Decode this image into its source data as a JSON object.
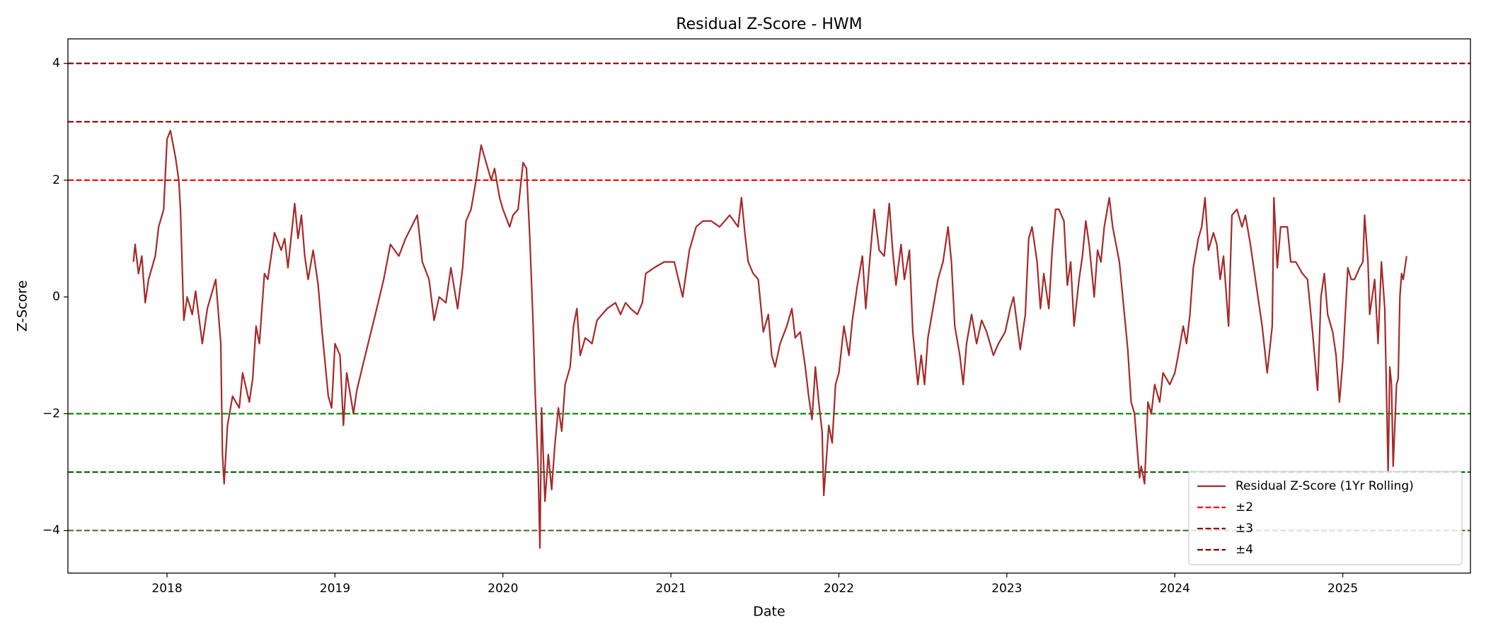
{
  "chart_data": {
    "type": "line",
    "title": "Residual Z-Score - HWM",
    "x_label": "Date",
    "y_label": "Z-Score",
    "xlim": [
      2017.41,
      2025.76
    ],
    "xticks": [
      2018,
      2019,
      2020,
      2021,
      2022,
      2023,
      2024,
      2025
    ],
    "ylim": [
      -4.73,
      4.42
    ],
    "yticks": [
      {
        "value": -4,
        "label": "−4"
      },
      {
        "value": -2,
        "label": "−2"
      },
      0,
      2,
      4
    ],
    "legend_position": "lower right",
    "series": [
      {
        "name": "Residual Z-Score (1Yr Rolling)",
        "color": "#a52a2a",
        "x": [
          2017.8,
          2017.81,
          2017.83,
          2017.85,
          2017.87,
          2017.89,
          2017.93,
          2017.95,
          2017.98,
          2018.0,
          2018.02,
          2018.05,
          2018.07,
          2018.08,
          2018.1,
          2018.12,
          2018.15,
          2018.17,
          2018.21,
          2018.24,
          2018.29,
          2018.32,
          2018.33,
          2018.34,
          2018.36,
          2018.39,
          2018.43,
          2018.45,
          2018.49,
          2018.51,
          2018.53,
          2018.55,
          2018.58,
          2018.6,
          2018.64,
          2018.68,
          2018.7,
          2018.72,
          2018.76,
          2018.78,
          2018.8,
          2018.82,
          2018.84,
          2018.87,
          2018.9,
          2018.92,
          2018.96,
          2018.98,
          2019.0,
          2019.03,
          2019.05,
          2019.07,
          2019.11,
          2019.13,
          2019.18,
          2019.24,
          2019.29,
          2019.33,
          2019.38,
          2019.42,
          2019.49,
          2019.52,
          2019.56,
          2019.59,
          2019.62,
          2019.66,
          2019.69,
          2019.73,
          2019.76,
          2019.78,
          2019.81,
          2019.84,
          2019.87,
          2019.9,
          2019.93,
          2019.95,
          2019.98,
          2020.0,
          2020.04,
          2020.06,
          2020.09,
          2020.12,
          2020.14,
          2020.16,
          2020.18,
          2020.19,
          2020.21,
          2020.22,
          2020.23,
          2020.25,
          2020.27,
          2020.29,
          2020.31,
          2020.33,
          2020.35,
          2020.37,
          2020.4,
          2020.42,
          2020.44,
          2020.46,
          2020.49,
          2020.53,
          2020.56,
          2020.62,
          2020.67,
          2020.7,
          2020.73,
          2020.76,
          2020.8,
          2020.83,
          2020.85,
          2020.9,
          2020.96,
          2021.02,
          2021.07,
          2021.11,
          2021.15,
          2021.19,
          2021.24,
          2021.29,
          2021.35,
          2021.4,
          2021.42,
          2021.44,
          2021.46,
          2021.49,
          2021.52,
          2021.55,
          2021.58,
          2021.6,
          2021.62,
          2021.65,
          2021.69,
          2021.72,
          2021.74,
          2021.77,
          2021.8,
          2021.82,
          2021.84,
          2021.86,
          2021.88,
          2021.9,
          2021.91,
          2021.94,
          2021.96,
          2021.98,
          2022.0,
          2022.03,
          2022.06,
          2022.08,
          2022.11,
          2022.14,
          2022.16,
          2022.18,
          2022.21,
          2022.24,
          2022.27,
          2022.3,
          2022.32,
          2022.34,
          2022.37,
          2022.39,
          2022.42,
          2022.44,
          2022.47,
          2022.49,
          2022.51,
          2022.53,
          2022.56,
          2022.59,
          2022.62,
          2022.65,
          2022.67,
          2022.69,
          2022.72,
          2022.74,
          2022.76,
          2022.79,
          2022.82,
          2022.85,
          2022.88,
          2022.92,
          2022.95,
          2022.99,
          2023.02,
          2023.04,
          2023.08,
          2023.11,
          2023.13,
          2023.15,
          2023.18,
          2023.2,
          2023.22,
          2023.25,
          2023.27,
          2023.29,
          2023.31,
          2023.34,
          2023.36,
          2023.38,
          2023.4,
          2023.43,
          2023.45,
          2023.47,
          2023.49,
          2023.52,
          2023.54,
          2023.56,
          2023.58,
          2023.61,
          2023.63,
          2023.65,
          2023.67,
          2023.7,
          2023.72,
          2023.74,
          2023.76,
          2023.79,
          2023.8,
          2023.82,
          2023.84,
          2023.86,
          2023.88,
          2023.91,
          2023.93,
          2023.97,
          2024.0,
          2024.02,
          2024.05,
          2024.07,
          2024.09,
          2024.11,
          2024.14,
          2024.16,
          2024.18,
          2024.2,
          2024.23,
          2024.25,
          2024.27,
          2024.29,
          2024.32,
          2024.34,
          2024.37,
          2024.4,
          2024.42,
          2024.45,
          2024.49,
          2024.52,
          2024.55,
          2024.58,
          2024.59,
          2024.61,
          2024.63,
          2024.67,
          2024.69,
          2024.72,
          2024.76,
          2024.79,
          2024.82,
          2024.85,
          2024.87,
          2024.89,
          2024.91,
          2024.94,
          2024.96,
          2024.98,
          2025.0,
          2025.03,
          2025.05,
          2025.07,
          2025.1,
          2025.12,
          2025.13,
          2025.15,
          2025.16,
          2025.19,
          2025.21,
          2025.23,
          2025.25,
          2025.27,
          2025.28,
          2025.29,
          2025.3,
          2025.32,
          2025.33,
          2025.34,
          2025.35,
          2025.36,
          2025.37,
          2025.38
        ],
        "values": [
          0.6,
          0.9,
          0.4,
          0.7,
          -0.1,
          0.3,
          0.7,
          1.2,
          1.5,
          2.7,
          2.85,
          2.4,
          2.0,
          1.5,
          -0.4,
          0.0,
          -0.3,
          0.1,
          -0.8,
          -0.2,
          0.3,
          -0.8,
          -2.7,
          -3.2,
          -2.2,
          -1.7,
          -1.9,
          -1.3,
          -1.8,
          -1.4,
          -0.5,
          -0.8,
          0.4,
          0.3,
          1.1,
          0.8,
          1.0,
          0.5,
          1.6,
          1.0,
          1.4,
          0.7,
          0.3,
          0.8,
          0.2,
          -0.5,
          -1.7,
          -1.9,
          -0.8,
          -1.0,
          -2.2,
          -1.3,
          -2.0,
          -1.6,
          -1.0,
          -0.3,
          0.3,
          0.9,
          0.7,
          1.0,
          1.4,
          0.6,
          0.3,
          -0.4,
          0.0,
          -0.1,
          0.5,
          -0.2,
          0.5,
          1.3,
          1.5,
          2.0,
          2.6,
          2.3,
          2.0,
          2.2,
          1.7,
          1.5,
          1.2,
          1.4,
          1.5,
          2.3,
          2.2,
          1.0,
          -0.5,
          -1.5,
          -3.0,
          -4.3,
          -1.9,
          -3.5,
          -2.7,
          -3.3,
          -2.5,
          -1.9,
          -2.3,
          -1.5,
          -1.2,
          -0.5,
          -0.2,
          -1.0,
          -0.7,
          -0.8,
          -0.4,
          -0.2,
          -0.1,
          -0.3,
          -0.1,
          -0.2,
          -0.3,
          -0.1,
          0.4,
          0.5,
          0.6,
          0.6,
          0.0,
          0.8,
          1.2,
          1.3,
          1.3,
          1.2,
          1.4,
          1.2,
          1.7,
          1.1,
          0.6,
          0.4,
          0.3,
          -0.6,
          -0.3,
          -1.0,
          -1.2,
          -0.8,
          -0.5,
          -0.2,
          -0.7,
          -0.6,
          -1.2,
          -1.7,
          -2.1,
          -1.2,
          -1.8,
          -2.3,
          -3.4,
          -2.2,
          -2.5,
          -1.5,
          -1.3,
          -0.5,
          -1.0,
          -0.4,
          0.2,
          0.7,
          -0.2,
          0.5,
          1.5,
          0.8,
          0.7,
          1.6,
          0.8,
          0.2,
          0.9,
          0.3,
          0.8,
          -0.6,
          -1.5,
          -1.0,
          -1.5,
          -0.7,
          -0.2,
          0.3,
          0.6,
          1.2,
          0.6,
          -0.5,
          -1.0,
          -1.5,
          -0.8,
          -0.3,
          -0.8,
          -0.4,
          -0.6,
          -1.0,
          -0.8,
          -0.6,
          -0.2,
          0.0,
          -0.9,
          -0.3,
          1.0,
          1.2,
          0.6,
          -0.2,
          0.4,
          -0.2,
          0.8,
          1.5,
          1.5,
          1.3,
          0.2,
          0.6,
          -0.5,
          0.3,
          0.7,
          1.3,
          0.9,
          0.0,
          0.8,
          0.6,
          1.2,
          1.7,
          1.2,
          0.9,
          0.6,
          -0.3,
          -0.9,
          -1.8,
          -2.0,
          -3.1,
          -2.9,
          -3.2,
          -1.8,
          -2.0,
          -1.5,
          -1.8,
          -1.3,
          -1.5,
          -1.3,
          -1.0,
          -0.5,
          -0.8,
          -0.3,
          0.5,
          1.0,
          1.2,
          1.7,
          0.8,
          1.1,
          0.9,
          0.3,
          0.7,
          -0.5,
          1.4,
          1.5,
          1.2,
          1.4,
          0.9,
          0.1,
          -0.5,
          -1.3,
          -0.5,
          1.7,
          0.5,
          1.2,
          1.2,
          0.6,
          0.6,
          0.4,
          0.3,
          -0.6,
          -1.6,
          0.0,
          0.4,
          -0.3,
          -0.6,
          -1.0,
          -1.8,
          -1.1,
          0.5,
          0.3,
          0.3,
          0.5,
          0.6,
          1.4,
          0.6,
          -0.3,
          0.3,
          -0.8,
          0.6,
          -0.2,
          -3.0,
          -1.2,
          -1.5,
          -2.9,
          -1.5,
          -1.4,
          0.0,
          0.4,
          0.3,
          0.5,
          0.7
        ]
      }
    ],
    "thresholds": [
      {
        "name": "±2",
        "color": "#ff0000",
        "lines": [
          {
            "value": 2,
            "color": "#ff0000"
          },
          {
            "value": -2,
            "color": "#008000"
          }
        ]
      },
      {
        "name": "±3",
        "color": "#8b0000",
        "lines": [
          {
            "value": 3,
            "color": "#8b0000"
          },
          {
            "value": -3,
            "color": "#006400"
          }
        ]
      },
      {
        "name": "±4",
        "color": "#800000",
        "lines": [
          {
            "value": 4,
            "color": "#800000"
          },
          {
            "value": -4,
            "color": "#556b2f"
          }
        ]
      }
    ]
  }
}
